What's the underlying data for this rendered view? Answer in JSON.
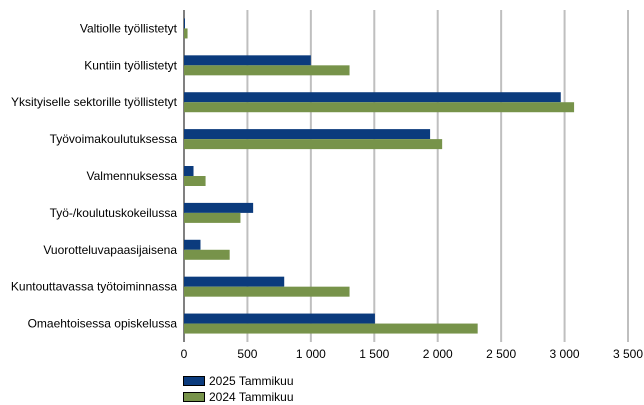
{
  "chart_data": {
    "type": "bar",
    "orientation": "horizontal",
    "categories": [
      "Valtiolle työllistetyt",
      "Kuntiin työllistetyt",
      "Yksityiselle sektorille työllistetyt",
      "Työvoimakoulutuksessa",
      "Valmennuksessa",
      "Työ-/koulutuskokeilussa",
      "Vuorotteluvapaasijaisena",
      "Kuntouttavassa työtoiminnassa",
      "Omaehtoisessa opiskelussa"
    ],
    "series": [
      {
        "name": "2025 Tammikuu",
        "color": "#0b3b7d",
        "values": [
          5,
          1000,
          2970,
          1940,
          75,
          545,
          130,
          790,
          1505
        ]
      },
      {
        "name": "2024 Tammikuu",
        "color": "#77934a",
        "values": [
          28,
          1305,
          3075,
          2035,
          170,
          445,
          360,
          1305,
          2315
        ]
      }
    ],
    "xlim": [
      0,
      3500
    ],
    "xticks": [
      0,
      500,
      1000,
      1500,
      2000,
      2500,
      3000,
      3500
    ],
    "xtick_labels": [
      "0",
      "500",
      "1 000",
      "1 500",
      "2 000",
      "2 500",
      "3 000",
      "3 500"
    ],
    "grid": "vertical",
    "legend_position": "bottom-left",
    "title": "",
    "xlabel": "",
    "ylabel": ""
  }
}
